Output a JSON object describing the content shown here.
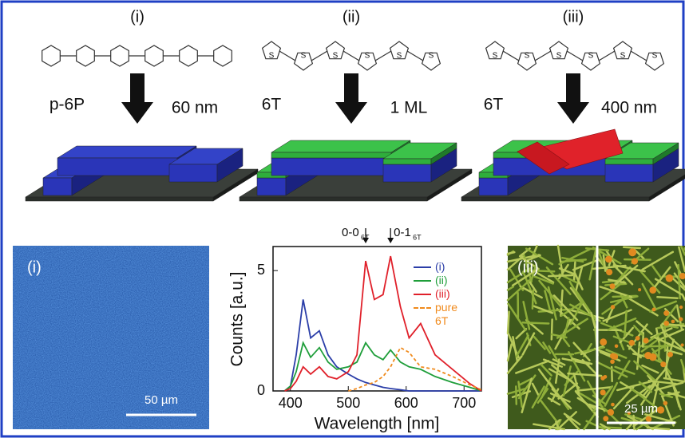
{
  "panels": [
    {
      "label": "(i)",
      "left_text": "p-6P",
      "right_text": "60 nm"
    },
    {
      "label": "(ii)",
      "left_text": "6T",
      "right_text": "1 ML"
    },
    {
      "label": "(iii)",
      "left_text": "6T",
      "right_text": "400 nm"
    }
  ],
  "molecule_atom": "S",
  "micrographs": [
    {
      "label": "(i)",
      "scale_bar": "50 µm"
    },
    {
      "label": "(iii)",
      "scale_bar": "25 µm"
    }
  ],
  "chart_data": {
    "type": "line",
    "x_label": "Wavelength [nm]",
    "y_label": "Counts [a.u.]",
    "x": [
      390,
      400,
      410,
      422,
      435,
      450,
      465,
      480,
      500,
      515,
      530,
      545,
      560,
      573,
      590,
      605,
      625,
      650,
      680,
      710,
      730
    ],
    "series": [
      {
        "name": "(i)",
        "color": "#2b3ea8",
        "dashed": false,
        "values": [
          0,
          0.2,
          1.5,
          3.8,
          2.2,
          2.5,
          1.5,
          1.0,
          0.7,
          0.5,
          0.35,
          0.25,
          0.15,
          0.1,
          0.05,
          0,
          0,
          0,
          0,
          0,
          0
        ]
      },
      {
        "name": "(ii)",
        "color": "#1f9e3a",
        "dashed": false,
        "values": [
          0,
          0.2,
          0.8,
          2.0,
          1.4,
          1.8,
          1.2,
          0.9,
          1.0,
          1.2,
          2.0,
          1.5,
          1.3,
          1.7,
          1.2,
          1.0,
          0.9,
          0.6,
          0.35,
          0.15,
          0
        ]
      },
      {
        "name": "(iii)",
        "color": "#e0202a",
        "dashed": false,
        "values": [
          0,
          0.1,
          0.4,
          1.0,
          0.7,
          1.0,
          0.6,
          0.5,
          0.8,
          1.5,
          5.4,
          3.8,
          4.0,
          5.6,
          3.5,
          2.2,
          2.8,
          1.5,
          0.9,
          0.3,
          0
        ]
      },
      {
        "name": "pure 6T",
        "color": "#f08a1c",
        "dashed": true,
        "values": [
          null,
          null,
          null,
          null,
          null,
          null,
          null,
          null,
          0,
          0.1,
          0.25,
          0.35,
          0.6,
          1.0,
          1.8,
          1.6,
          1.0,
          0.9,
          0.6,
          0.25,
          0.05
        ]
      }
    ],
    "annotations": [
      {
        "label": "0-0",
        "subscript": "6T",
        "x": 530
      },
      {
        "label": "0-1",
        "subscript": "6T",
        "x": 573
      }
    ],
    "xlim": [
      370,
      730
    ],
    "xticks": [
      400,
      500,
      600,
      700
    ],
    "ylim": [
      0,
      6
    ],
    "yticks": [
      0,
      5
    ]
  }
}
